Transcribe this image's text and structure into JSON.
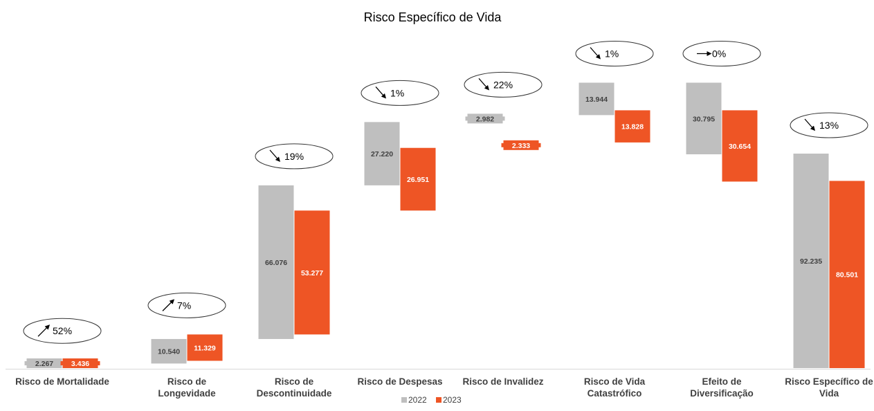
{
  "chart_data": {
    "type": "bar",
    "title": "Risco Específico de Vida",
    "categories": [
      [
        "Risco de Mortalidade"
      ],
      [
        "Risco de",
        "Longevidade"
      ],
      [
        "Risco de",
        "Descontinuidade"
      ],
      [
        "Risco de Despesas"
      ],
      [
        "Risco de Invalidez"
      ],
      [
        "Risco de Vida",
        "Catastrófico"
      ],
      [
        "Efeito de",
        "Diversificação"
      ],
      [
        "Risco Específico de",
        "Vida"
      ]
    ],
    "series": [
      {
        "name": "2022",
        "color": "#BFBFBF",
        "values": [
          2267,
          10540,
          66076,
          27220,
          2982,
          13944,
          30795,
          92235
        ],
        "labels": [
          "2.267",
          "10.540",
          "66.076",
          "27.220",
          "2.982",
          "13.944",
          "30.795",
          "92.235"
        ],
        "label_color": "#404040"
      },
      {
        "name": "2023",
        "color": "#EE5525",
        "values": [
          3436,
          11329,
          53277,
          26951,
          2333,
          13828,
          30654,
          80501
        ],
        "labels": [
          "3.436",
          "11.329",
          "53.277",
          "26.951",
          "2.333",
          "13.828",
          "30.654",
          "80.501"
        ],
        "label_color": "#FFFFFF"
      }
    ],
    "changes": [
      {
        "direction": "up",
        "label": "52%"
      },
      {
        "direction": "up",
        "label": "7%"
      },
      {
        "direction": "down",
        "label": "19%"
      },
      {
        "direction": "down",
        "label": "1%"
      },
      {
        "direction": "down",
        "label": "22%"
      },
      {
        "direction": "down",
        "label": "1%"
      },
      {
        "direction": "flat",
        "label": "0%"
      },
      {
        "direction": "down",
        "label": "13%"
      }
    ],
    "legend_position": "bottom",
    "grid": false
  }
}
